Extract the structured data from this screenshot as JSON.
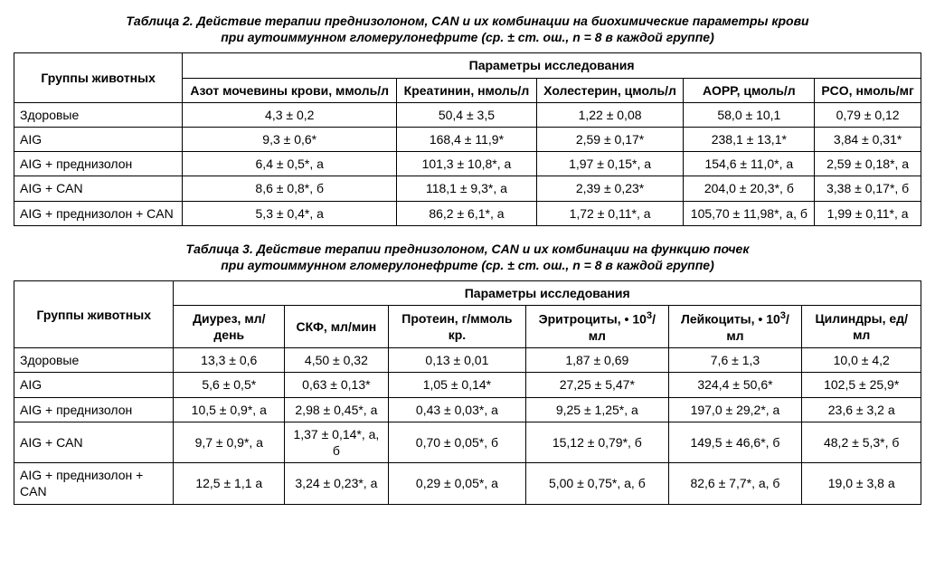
{
  "table2": {
    "caption_line1": "Таблица 2. Действие терапии преднизолоном, CAN и их комбинации на биохимические параметры крови",
    "caption_line2": "при аутоиммунном гломерулонефрите (ср. ± ст. ош., n = 8 в каждой группе)",
    "group_header": "Группы животных",
    "param_header": "Параметры исследования",
    "columns": [
      "Азот мочевины крови, ммоль/л",
      "Креатинин, нмоль/л",
      "Холестерин, цмоль/л",
      "АОРР, цмоль/л",
      "РCO, нмоль/мг"
    ],
    "rows": [
      {
        "label": "Здоровые",
        "cells": [
          "4,3 ± 0,2",
          "50,4 ± 3,5",
          "1,22 ± 0,08",
          "58,0 ± 10,1",
          "0,79 ± 0,12"
        ]
      },
      {
        "label": "AIG",
        "cells": [
          "9,3 ± 0,6*",
          "168,4 ± 11,9*",
          "2,59 ± 0,17*",
          "238,1 ± 13,1*",
          "3,84 ± 0,31*"
        ]
      },
      {
        "label": "AIG + преднизолон",
        "cells": [
          "6,4 ± 0,5*, а",
          "101,3 ± 10,8*, а",
          "1,97 ± 0,15*, а",
          "154,6 ± 11,0*, а",
          "2,59 ± 0,18*, а"
        ]
      },
      {
        "label": "AIG + CAN",
        "cells": [
          "8,6 ± 0,8*, б",
          "118,1 ± 9,3*, а",
          "2,39 ± 0,23*",
          "204,0 ± 20,3*, б",
          "3,38 ± 0,17*, б"
        ]
      },
      {
        "label": "AIG + преднизолон + CAN",
        "cells": [
          "5,3 ± 0,4*, а",
          "86,2 ± 6,1*, а",
          "1,72 ± 0,11*, а",
          "105,70 ± 11,98*, а, б",
          "1,99 ± 0,11*, а"
        ]
      }
    ]
  },
  "table3": {
    "caption_line1": "Таблица 3. Действие терапии преднизолоном, CAN и их комбинации на функцию почек",
    "caption_line2": "при аутоиммунном гломерулонефрите (ср. ± ст. ош., n = 8 в каждой группе)",
    "group_header": "Группы животных",
    "param_header": "Параметры исследования",
    "columns_html": [
      "Диурез, мл/день",
      "СКФ, мл/мин",
      "Протеин, г/ммоль кр.",
      "Эритроциты, • 10<span class=\"sup\">3</span>/мл",
      "Лейкоциты, • 10<span class=\"sup\">3</span>/мл",
      "Цилиндры, ед/мл"
    ],
    "rows": [
      {
        "label": "Здоровые",
        "cells": [
          "13,3 ± 0,6",
          "4,50 ± 0,32",
          "0,13 ± 0,01",
          "1,87 ± 0,69",
          "7,6 ± 1,3",
          "10,0 ± 4,2"
        ]
      },
      {
        "label": "AIG",
        "cells": [
          "5,6 ± 0,5*",
          "0,63 ± 0,13*",
          "1,05 ± 0,14*",
          "27,25 ± 5,47*",
          "324,4 ± 50,6*",
          "102,5 ± 25,9*"
        ]
      },
      {
        "label": "AIG + преднизолон",
        "cells": [
          "10,5 ± 0,9*, а",
          "2,98 ± 0,45*, а",
          "0,43 ± 0,03*, а",
          "9,25 ± 1,25*, а",
          "197,0 ± 29,2*, а",
          "23,6 ± 3,2 а"
        ]
      },
      {
        "label": "AIG + CAN",
        "cells": [
          "9,7 ± 0,9*, а",
          "1,37 ± 0,14*, а, б",
          "0,70 ± 0,05*, б",
          "15,12 ± 0,79*, б",
          "149,5 ± 46,6*, б",
          "48,2 ± 5,3*, б"
        ]
      },
      {
        "label": "AIG + преднизолон + CAN",
        "cells": [
          "12,5 ± 1,1 а",
          "3,24 ± 0,23*, а",
          "0,29 ± 0,05*, а",
          "5,00 ± 0,75*, а, б",
          "82,6 ± 7,7*, а, б",
          "19,0 ± 3,8 а"
        ]
      }
    ]
  },
  "style": {
    "border_color": "#000000",
    "background": "#ffffff",
    "font_family": "Arial, sans-serif",
    "base_font_size": 14,
    "caption_font_style": "italic",
    "caption_font_weight": "bold"
  }
}
